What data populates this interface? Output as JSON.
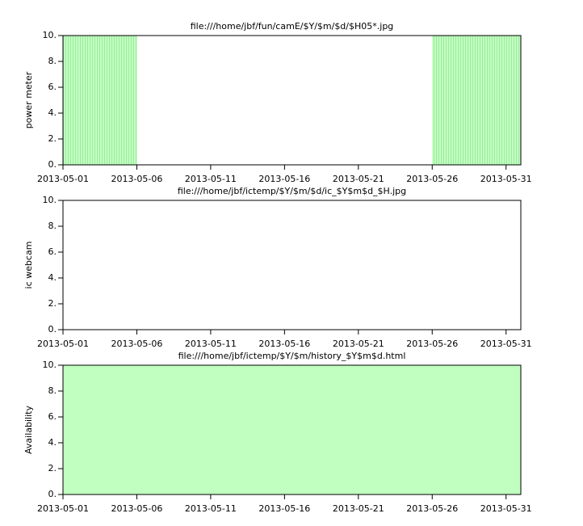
{
  "chart_data": [
    {
      "type": "bar",
      "title": "file:///home/jbf/fun/camE/$Y/$m/$d/$H05*.jpg",
      "ylabel": "power meter",
      "x": [
        "2013-05-01",
        "2013-05-02",
        "2013-05-03",
        "2013-05-04",
        "2013-05-05",
        "2013-05-06",
        "2013-05-07",
        "2013-05-08",
        "2013-05-09",
        "2013-05-10",
        "2013-05-11",
        "2013-05-12",
        "2013-05-13",
        "2013-05-14",
        "2013-05-15",
        "2013-05-16",
        "2013-05-17",
        "2013-05-18",
        "2013-05-19",
        "2013-05-20",
        "2013-05-21",
        "2013-05-22",
        "2013-05-23",
        "2013-05-24",
        "2013-05-25",
        "2013-05-26",
        "2013-05-27",
        "2013-05-28",
        "2013-05-29",
        "2013-05-30",
        "2013-05-31"
      ],
      "values": [
        10,
        10,
        10,
        10,
        10,
        0,
        0,
        0,
        0,
        0,
        0,
        0,
        0,
        0,
        0,
        0,
        0,
        0,
        0,
        0,
        0,
        0,
        0,
        0,
        0,
        10,
        10,
        10,
        10,
        10,
        10
      ],
      "color": "#c0ffc0",
      "striped": true,
      "ylim": [
        0,
        10
      ],
      "yticks": [
        {
          "value": 0,
          "label": "0."
        },
        {
          "value": 2,
          "label": "2."
        },
        {
          "value": 4,
          "label": "4."
        },
        {
          "value": 6,
          "label": "6."
        },
        {
          "value": 8,
          "label": "8."
        },
        {
          "value": 10,
          "label": "10."
        }
      ],
      "xticks": [
        "2013-05-01",
        "2013-05-06",
        "2013-05-11",
        "2013-05-16",
        "2013-05-21",
        "2013-05-26",
        "2013-05-31"
      ]
    },
    {
      "type": "bar",
      "title": "file:///home/jbf/ictemp/$Y/$m/$d/ic_$Y$m$d_$H.jpg",
      "ylabel": "ic webcam",
      "x": [
        "2013-05-01",
        "2013-05-02",
        "2013-05-03",
        "2013-05-04",
        "2013-05-05",
        "2013-05-06",
        "2013-05-07",
        "2013-05-08",
        "2013-05-09",
        "2013-05-10",
        "2013-05-11",
        "2013-05-12",
        "2013-05-13",
        "2013-05-14",
        "2013-05-15",
        "2013-05-16",
        "2013-05-17",
        "2013-05-18",
        "2013-05-19",
        "2013-05-20",
        "2013-05-21",
        "2013-05-22",
        "2013-05-23",
        "2013-05-24",
        "2013-05-25",
        "2013-05-26",
        "2013-05-27",
        "2013-05-28",
        "2013-05-29",
        "2013-05-30",
        "2013-05-31"
      ],
      "values": [
        0,
        0,
        0,
        0,
        0,
        0,
        0,
        0,
        0,
        0,
        0,
        0,
        0,
        0,
        0,
        0,
        0,
        0,
        0,
        0,
        0,
        0,
        0,
        0,
        0,
        0,
        0,
        0,
        0,
        0,
        0
      ],
      "color": "#c0ffc0",
      "striped": false,
      "ylim": [
        0,
        10
      ],
      "yticks": [
        {
          "value": 0,
          "label": "0."
        },
        {
          "value": 2,
          "label": "2."
        },
        {
          "value": 4,
          "label": "4."
        },
        {
          "value": 6,
          "label": "6."
        },
        {
          "value": 8,
          "label": "8."
        },
        {
          "value": 10,
          "label": "10."
        }
      ],
      "xticks": [
        "2013-05-01",
        "2013-05-06",
        "2013-05-11",
        "2013-05-16",
        "2013-05-21",
        "2013-05-26",
        "2013-05-31"
      ]
    },
    {
      "type": "bar",
      "title": "file:///home/jbf/ictemp/$Y/$m/history_$Y$m$d.html",
      "ylabel": "Availability",
      "x": [
        "2013-05-01",
        "2013-05-02",
        "2013-05-03",
        "2013-05-04",
        "2013-05-05",
        "2013-05-06",
        "2013-05-07",
        "2013-05-08",
        "2013-05-09",
        "2013-05-10",
        "2013-05-11",
        "2013-05-12",
        "2013-05-13",
        "2013-05-14",
        "2013-05-15",
        "2013-05-16",
        "2013-05-17",
        "2013-05-18",
        "2013-05-19",
        "2013-05-20",
        "2013-05-21",
        "2013-05-22",
        "2013-05-23",
        "2013-05-24",
        "2013-05-25",
        "2013-05-26",
        "2013-05-27",
        "2013-05-28",
        "2013-05-29",
        "2013-05-30",
        "2013-05-31"
      ],
      "values": [
        10,
        10,
        10,
        10,
        10,
        10,
        10,
        10,
        10,
        10,
        10,
        10,
        10,
        10,
        10,
        10,
        10,
        10,
        10,
        10,
        10,
        10,
        10,
        10,
        10,
        10,
        10,
        10,
        10,
        10,
        10
      ],
      "color": "#c0ffc0",
      "striped": false,
      "ylim": [
        0,
        10
      ],
      "yticks": [
        {
          "value": 0,
          "label": "0."
        },
        {
          "value": 2,
          "label": "2."
        },
        {
          "value": 4,
          "label": "4."
        },
        {
          "value": 6,
          "label": "6."
        },
        {
          "value": 8,
          "label": "8."
        },
        {
          "value": 10,
          "label": "10."
        }
      ],
      "xticks": [
        "2013-05-01",
        "2013-05-06",
        "2013-05-11",
        "2013-05-16",
        "2013-05-21",
        "2013-05-26",
        "2013-05-31"
      ]
    }
  ]
}
